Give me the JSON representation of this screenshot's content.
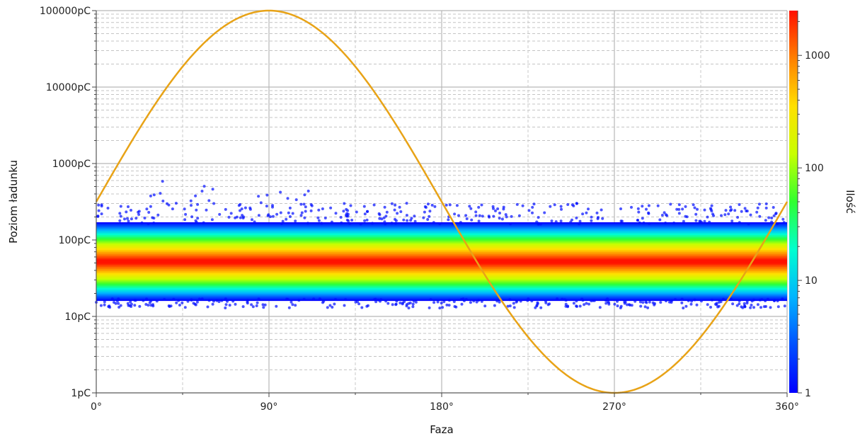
{
  "chart_data": {
    "type": "scatter",
    "title": "",
    "xlabel": "Faza",
    "ylabel": "Poziom ładunku",
    "colorbar_label": "Ilość",
    "x_ticks": [
      "0°",
      "90°",
      "180°",
      "270°",
      "360°"
    ],
    "x_tick_values": [
      0,
      90,
      180,
      270,
      360
    ],
    "xlim": [
      0,
      360
    ],
    "y_ticks": [
      "1pC",
      "10pC",
      "100pC",
      "1000pC",
      "10000pC",
      "100000pC"
    ],
    "y_tick_values": [
      1,
      10,
      100,
      1000,
      10000,
      100000
    ],
    "ylim": [
      1,
      100000
    ],
    "y_scale": "log",
    "colorbar_ticks": [
      "1",
      "10",
      "100",
      "1000"
    ],
    "colorbar_tick_values": [
      1,
      10,
      100,
      1000
    ],
    "colorbar_range": [
      1,
      2500
    ],
    "colorbar_scale": "log",
    "grid": true,
    "colormap": [
      "#0000ff",
      "#0050ff",
      "#00b4ff",
      "#00ffd0",
      "#30ff30",
      "#c8ff00",
      "#ffe000",
      "#ff8000",
      "#ff1000"
    ],
    "density_band": {
      "center_pC": 52,
      "core_range_pC": [
        38,
        70
      ],
      "main_range_pC": [
        17,
        160
      ],
      "outlier_range_pC": [
        12,
        900
      ],
      "max_count": 2500
    },
    "series": [
      {
        "type": "line",
        "color": "#e8a317",
        "x": [
          0,
          90,
          180,
          270,
          360
        ],
        "y": [
          330,
          100000,
          330,
          1,
          330
        ]
      }
    ]
  }
}
